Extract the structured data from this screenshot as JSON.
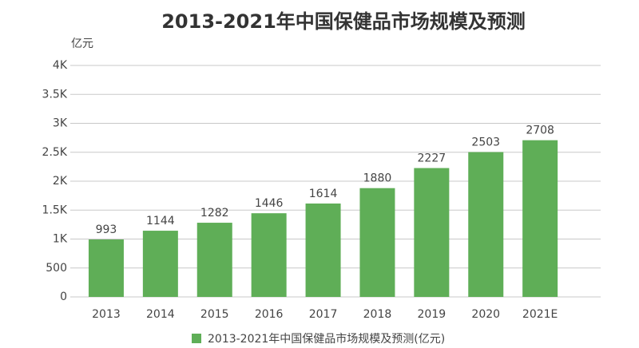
{
  "chart_data": {
    "type": "bar",
    "title": "2013-2021年中国保健品市场规模及预测",
    "y_label": "亿元",
    "categories": [
      "2013",
      "2014",
      "2015",
      "2016",
      "2017",
      "2018",
      "2019",
      "2020",
      "2021E"
    ],
    "series": [
      {
        "name": "2013-2021年中国保健品市场规模及预测(亿元)",
        "color": "#5fae57",
        "values": [
          993,
          1144,
          1282,
          1446,
          1614,
          1880,
          2227,
          2503,
          2708
        ]
      }
    ],
    "ylim": [
      0,
      4000
    ],
    "yticks": [
      0,
      500,
      {
        "value": 1000,
        "label": "1K"
      },
      {
        "value": 1500,
        "label": "1.5K"
      },
      {
        "value": 2000,
        "label": "2K"
      },
      {
        "value": 2500,
        "label": "2.5K"
      },
      {
        "value": 3000,
        "label": "3K"
      },
      {
        "value": 3500,
        "label": "3.5K"
      },
      {
        "value": 4000,
        "label": "4K"
      }
    ],
    "grid": true,
    "legend": "bottom"
  }
}
